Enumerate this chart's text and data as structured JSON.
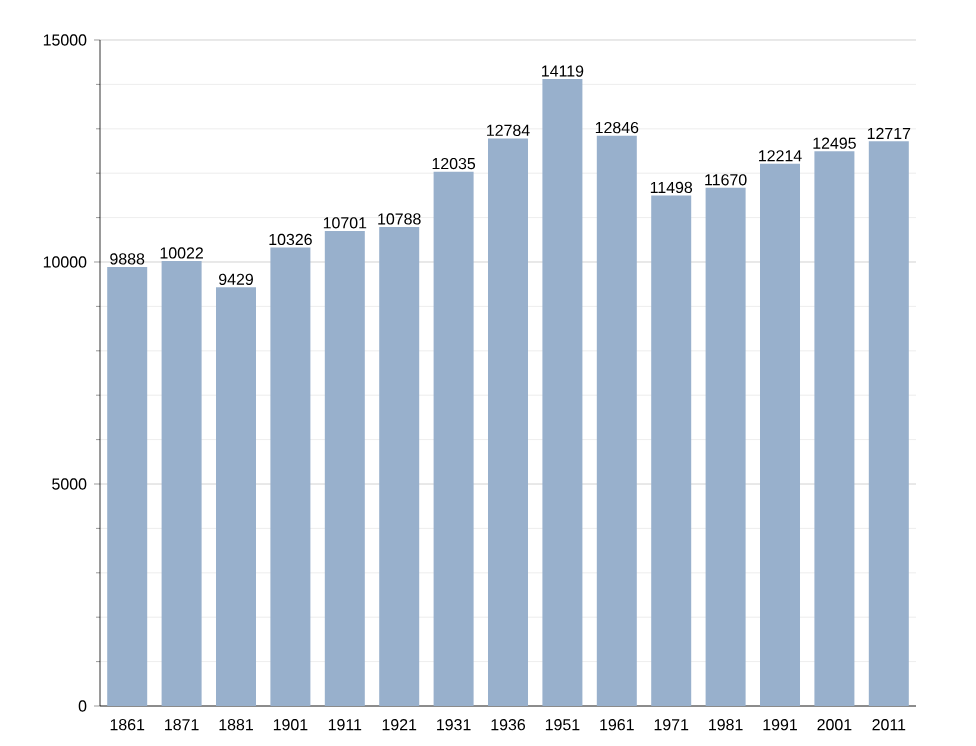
{
  "chart_data": {
    "type": "bar",
    "categories": [
      "1861",
      "1871",
      "1881",
      "1901",
      "1911",
      "1921",
      "1931",
      "1936",
      "1951",
      "1961",
      "1971",
      "1981",
      "1991",
      "2001",
      "2011"
    ],
    "values": [
      9888,
      10022,
      9429,
      10326,
      10701,
      10788,
      12035,
      12784,
      14119,
      12846,
      11498,
      11670,
      12214,
      12495,
      12717
    ],
    "color": "#98b0cc",
    "ylim": [
      0,
      15000
    ],
    "yticks": [
      0,
      5000,
      10000,
      15000
    ],
    "grid": "y",
    "data_labels": true
  }
}
